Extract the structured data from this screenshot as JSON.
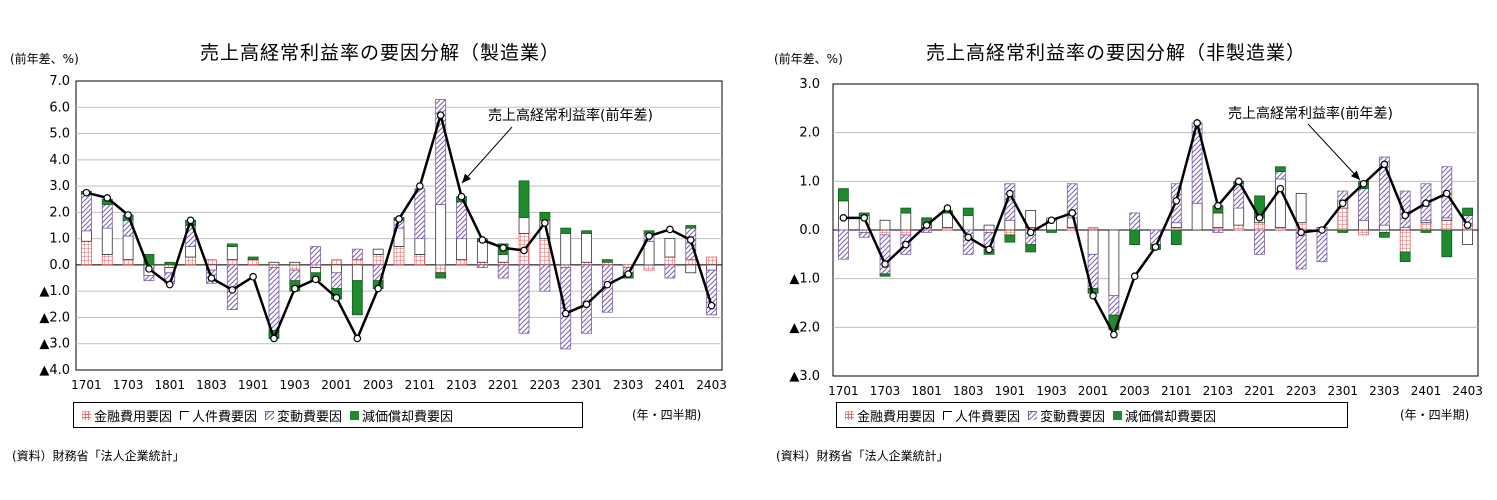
{
  "colors": {
    "financial": "#e06666",
    "labor": "#ffffff",
    "variable": "#7b5ea8",
    "depreciation": "#1f8a2e",
    "line": "#000000"
  },
  "icons": {
    "legend_swatches": [
      "grid-swatch",
      "white-swatch",
      "hatched-swatch",
      "green-swatch"
    ]
  },
  "chart_data": [
    {
      "type": "bar",
      "title": "売上高経常利益率の要因分解（製造業）",
      "unit_label": "(前年差、%)",
      "period_label": "(年・四半期)",
      "source": "(資料）財務省「法人企業統計」",
      "annotation": "売上高経常利益率(前年差)",
      "legend": [
        "金融費用要因",
        "人件費要因",
        "変動費要因",
        "減価償却費要因"
      ],
      "ylim": [
        -4.0,
        7.0
      ],
      "yticks": [
        7.0,
        6.0,
        5.0,
        4.0,
        3.0,
        2.0,
        1.0,
        0.0,
        -1.0,
        -2.0,
        -3.0,
        -4.0
      ],
      "ytick_labels": [
        "7.0",
        "6.0",
        "5.0",
        "4.0",
        "3.0",
        "2.0",
        "1.0",
        "0.0",
        "▲1.0",
        "▲2.0",
        "▲3.0",
        "▲4.0"
      ],
      "xtick_labels": [
        "1701",
        "1703",
        "1801",
        "1803",
        "1901",
        "1903",
        "2001",
        "2003",
        "2101",
        "2103",
        "2201",
        "2203",
        "2301",
        "2303",
        "2401",
        "2403"
      ],
      "grid": "horizontal",
      "categories": [
        "1701",
        "1702",
        "1703",
        "1704",
        "1801",
        "1802",
        "1803",
        "1804",
        "1901",
        "1902",
        "1903",
        "1904",
        "2001",
        "2002",
        "2003",
        "2004",
        "2101",
        "2102",
        "2103",
        "2104",
        "2201",
        "2202",
        "2203",
        "2204",
        "2301",
        "2302",
        "2303",
        "2304",
        "2401",
        "2402",
        "2403"
      ],
      "series": [
        {
          "name": "金融費用要因",
          "values": [
            0.9,
            0.4,
            0.2,
            0.0,
            -0.1,
            0.3,
            0.2,
            0.2,
            0.2,
            -0.1,
            -0.2,
            -0.1,
            0.2,
            0.2,
            0.4,
            0.7,
            0.4,
            -0.3,
            0.2,
            0.1,
            0.1,
            1.2,
            1.0,
            -0.1,
            0.1,
            0.1,
            -0.1,
            -0.2,
            0.3,
            0.2,
            0.3
          ]
        },
        {
          "name": "人件費要因",
          "values": [
            0.4,
            1.0,
            0.9,
            -0.4,
            -0.2,
            0.4,
            -0.2,
            0.5,
            0.0,
            0.1,
            0.1,
            -0.2,
            -0.3,
            -0.6,
            0.2,
            0.7,
            0.6,
            2.3,
            0.8,
            0.8,
            0.3,
            0.6,
            0.7,
            1.2,
            1.1,
            0.0,
            0.0,
            0.9,
            0.7,
            -0.3,
            -0.2
          ]
        },
        {
          "name": "変動費要因",
          "values": [
            1.4,
            0.9,
            0.6,
            -0.2,
            -0.4,
            0.8,
            -0.5,
            -1.7,
            0.0,
            -2.4,
            -0.4,
            0.7,
            -0.6,
            0.4,
            -0.6,
            0.3,
            1.9,
            4.0,
            1.4,
            -0.1,
            -0.5,
            -2.6,
            -1.0,
            -3.1,
            -2.6,
            -1.8,
            -0.2,
            0.3,
            -0.5,
            1.2,
            -1.7
          ]
        },
        {
          "name": "減価償却費要因",
          "values": [
            0.1,
            0.2,
            0.2,
            0.4,
            0.1,
            0.2,
            0.0,
            0.1,
            0.1,
            -0.3,
            -0.4,
            -0.3,
            -0.4,
            -1.3,
            -0.3,
            0.1,
            0.0,
            -0.2,
            0.2,
            0.1,
            0.4,
            1.4,
            0.3,
            0.2,
            0.1,
            0.1,
            -0.2,
            0.1,
            0.0,
            0.1,
            0.0
          ]
        }
      ],
      "line": {
        "name": "売上高経常利益率(前年差)",
        "values": [
          2.75,
          2.55,
          1.9,
          -0.15,
          -0.75,
          1.7,
          -0.5,
          -0.95,
          -0.45,
          -2.8,
          -0.9,
          -0.55,
          -1.25,
          -2.8,
          -0.9,
          1.75,
          3.0,
          5.7,
          2.6,
          0.95,
          0.65,
          0.55,
          1.6,
          -1.85,
          -1.5,
          -0.75,
          -0.35,
          1.1,
          1.35,
          0.95,
          -1.55
        ]
      }
    },
    {
      "type": "bar",
      "title": "売上高経常利益率の要因分解（非製造業）",
      "unit_label": "(前年差、%)",
      "period_label": "(年・四半期)",
      "source": "(資料）財務省「法人企業統計」",
      "annotation": "売上高経常利益率(前年差)",
      "legend": [
        "金融費用要因",
        "人件費要因",
        "変動費要因",
        "減価償却費要因"
      ],
      "ylim": [
        -3.0,
        3.0
      ],
      "yticks": [
        3.0,
        2.0,
        1.0,
        0.0,
        -1.0,
        -2.0,
        -3.0
      ],
      "ytick_labels": [
        "3.0",
        "2.0",
        "1.0",
        "0.0",
        "▲1.0",
        "▲2.0",
        "▲3.0"
      ],
      "xtick_labels": [
        "1701",
        "1703",
        "1801",
        "1803",
        "1901",
        "1903",
        "2001",
        "2003",
        "2101",
        "2103",
        "2201",
        "2203",
        "2301",
        "2303",
        "2401",
        "2403"
      ],
      "grid": "horizontal",
      "categories": [
        "1701",
        "1702",
        "1703",
        "1704",
        "1801",
        "1802",
        "1803",
        "1804",
        "1901",
        "1902",
        "1903",
        "1904",
        "2001",
        "2002",
        "2003",
        "2004",
        "2101",
        "2102",
        "2103",
        "2104",
        "2201",
        "2202",
        "2203",
        "2204",
        "2301",
        "2302",
        "2303",
        "2304",
        "2401",
        "2402",
        "2403"
      ],
      "series": [
        {
          "name": "金融費用要因",
          "values": [
            0.0,
            -0.05,
            -0.1,
            -0.1,
            0.05,
            0.05,
            0.0,
            -0.05,
            -0.1,
            0.05,
            0.0,
            0.05,
            0.05,
            0.0,
            0.0,
            0.0,
            0.05,
            0.0,
            0.05,
            0.1,
            0.15,
            0.05,
            0.15,
            0.0,
            0.45,
            -0.1,
            -0.05,
            -0.45,
            0.15,
            0.2,
            0.1
          ]
        },
        {
          "name": "人件費要因",
          "values": [
            0.6,
            0.3,
            0.2,
            0.35,
            0.05,
            0.3,
            0.3,
            0.1,
            0.2,
            0.35,
            0.2,
            0.2,
            -0.5,
            -1.35,
            0.0,
            0.0,
            0.1,
            0.55,
            0.3,
            0.35,
            0.1,
            1.0,
            0.6,
            0.05,
            0.15,
            0.2,
            0.1,
            0.05,
            0.05,
            0.05,
            -0.3
          ]
        },
        {
          "name": "変動費要因",
          "values": [
            -0.6,
            -0.1,
            -0.8,
            -0.4,
            -0.05,
            0.0,
            -0.5,
            -0.35,
            0.75,
            -0.3,
            0.05,
            0.7,
            -0.7,
            -0.4,
            0.35,
            -0.3,
            0.8,
            1.65,
            -0.05,
            0.5,
            -0.5,
            0.15,
            -0.8,
            -0.65,
            0.2,
            0.65,
            1.4,
            0.75,
            0.75,
            1.05,
            0.2
          ]
        },
        {
          "name": "減価償却費要因",
          "values": [
            0.25,
            0.05,
            -0.05,
            0.1,
            0.15,
            0.05,
            0.15,
            -0.1,
            -0.15,
            -0.15,
            -0.05,
            0.0,
            -0.1,
            -0.3,
            -0.3,
            -0.1,
            -0.3,
            0.0,
            0.15,
            0.05,
            0.45,
            0.1,
            0.0,
            0.0,
            -0.05,
            0.15,
            -0.1,
            -0.2,
            -0.05,
            -0.55,
            0.15
          ]
        },
        {
          "name": "",
          "values": [
            0.0,
            0.0,
            0.0,
            0.0,
            0.0,
            0.0,
            0.0,
            0.0,
            0.0,
            0.0,
            0.0,
            0.0,
            0.0,
            0.0,
            0.0,
            0.0,
            0.0,
            0.0,
            0.0,
            0.0,
            0.0,
            0.0,
            0.0,
            0.0,
            0.0,
            0.0,
            0.0,
            0.0,
            0.0,
            0.0,
            0.0
          ]
        }
      ],
      "line": {
        "name": "売上高経常利益率(前年差)",
        "values": [
          0.25,
          0.25,
          -0.7,
          -0.3,
          0.1,
          0.45,
          -0.15,
          -0.4,
          0.75,
          -0.05,
          0.2,
          0.35,
          -1.35,
          -2.15,
          -0.95,
          -0.35,
          0.6,
          2.2,
          0.5,
          1.0,
          0.25,
          0.85,
          -0.05,
          0.0,
          0.55,
          0.95,
          1.35,
          0.3,
          0.55,
          0.75,
          0.1
        ]
      }
    }
  ]
}
